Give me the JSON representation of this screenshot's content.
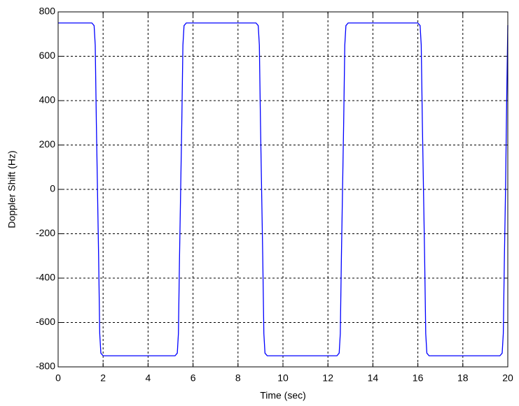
{
  "chart_data": {
    "type": "line",
    "xlabel": "Time (sec)",
    "ylabel": "Doppler Shift (Hz)",
    "xlim": [
      0,
      20
    ],
    "ylim": [
      -800,
      800
    ],
    "xticks": [
      0,
      2,
      4,
      6,
      8,
      10,
      12,
      14,
      16,
      18,
      20
    ],
    "yticks": [
      -800,
      -600,
      -400,
      -200,
      0,
      200,
      400,
      600,
      800
    ],
    "grid": true,
    "x": [
      0,
      1.5,
      1.6,
      1.65,
      1.7,
      1.75,
      1.8,
      1.85,
      1.9,
      2.0,
      5.2,
      5.3,
      5.35,
      5.4,
      5.45,
      5.5,
      5.55,
      5.6,
      5.7,
      8.8,
      8.9,
      8.95,
      9.0,
      9.05,
      9.1,
      9.15,
      9.2,
      9.3,
      12.4,
      12.5,
      12.55,
      12.6,
      12.65,
      12.7,
      12.75,
      12.8,
      12.9,
      16.0,
      16.1,
      16.15,
      16.2,
      16.25,
      16.3,
      16.35,
      16.4,
      16.5,
      19.65,
      19.75,
      19.8,
      19.85,
      19.9,
      19.95,
      20
    ],
    "series": [
      {
        "color": "#0000ff",
        "values": [
          750,
          750,
          738,
          650,
          300,
          0,
          -300,
          -650,
          -738,
          -750,
          -750,
          -738,
          -650,
          -300,
          0,
          300,
          650,
          738,
          750,
          750,
          738,
          650,
          300,
          0,
          -300,
          -650,
          -738,
          -750,
          -750,
          -738,
          -650,
          -300,
          0,
          300,
          650,
          738,
          750,
          750,
          738,
          650,
          300,
          0,
          -300,
          -650,
          -738,
          -750,
          -750,
          -738,
          -650,
          -300,
          0,
          400,
          740
        ]
      }
    ]
  }
}
